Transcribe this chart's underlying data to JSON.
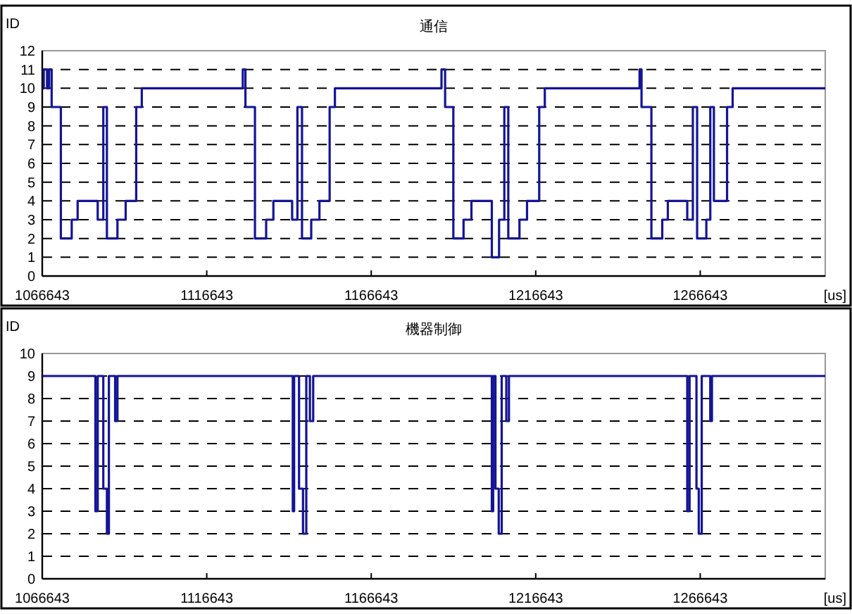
{
  "chart_data": [
    {
      "type": "step",
      "title": "通信",
      "ylabel": "ID",
      "xlabel": "[us]",
      "xlim": [
        1066643,
        1304643
      ],
      "xticks": [
        1066643,
        1116643,
        1166643,
        1216643,
        1266643
      ],
      "ylim": [
        0,
        12
      ],
      "yticks": [
        0,
        1,
        2,
        3,
        4,
        5,
        6,
        7,
        8,
        9,
        10,
        11,
        12
      ],
      "grid": "y",
      "series": [
        {
          "color": "#141496",
          "x": [
            1066643,
            1067100,
            1068100,
            1068700,
            1069500,
            1072300,
            1075600,
            1077400,
            1083500,
            1085200,
            1086300,
            1089500,
            1092000,
            1095200,
            1096900,
            1127600,
            1128400,
            1131300,
            1134700,
            1136900,
            1142600,
            1144200,
            1145600,
            1148400,
            1150900,
            1154000,
            1155600,
            1188000,
            1189100,
            1191600,
            1194700,
            1197100,
            1203300,
            1205500,
            1207100,
            1208300,
            1211700,
            1214000,
            1217700,
            1219400,
            1248200,
            1248800,
            1251800,
            1255100,
            1256800,
            1262700,
            1264400,
            1265700,
            1268500,
            1269700,
            1270800,
            1274800,
            1276500,
            1304643
          ],
          "values": [
            10,
            11,
            10,
            11,
            9,
            2,
            3,
            4,
            3,
            9,
            2,
            3,
            4,
            9,
            10,
            11,
            9,
            2,
            3,
            4,
            3,
            9,
            2,
            3,
            4,
            9,
            10,
            11,
            9,
            2,
            3,
            4,
            1,
            3,
            9,
            2,
            3,
            4,
            9,
            10,
            11,
            9,
            2,
            3,
            4,
            3,
            9,
            2,
            3,
            9,
            4,
            9,
            10,
            10
          ]
        }
      ]
    },
    {
      "type": "step",
      "title": "機器制御",
      "ylabel": "ID",
      "xlabel": "[us]",
      "xlim": [
        1066643,
        1304643
      ],
      "xticks": [
        1066643,
        1116643,
        1166643,
        1216643,
        1266643
      ],
      "ylim": [
        0,
        10
      ],
      "yticks": [
        0,
        1,
        2,
        3,
        4,
        5,
        6,
        7,
        8,
        9,
        10
      ],
      "grid": "y",
      "series": [
        {
          "color": "#141496",
          "x": [
            1066643,
            1082800,
            1083500,
            1085200,
            1086300,
            1086900,
            1088800,
            1089500,
            1142800,
            1143200,
            1144700,
            1145900,
            1146900,
            1148000,
            1149000,
            1203300,
            1203700,
            1204400,
            1205400,
            1206300,
            1207700,
            1208500,
            1262700,
            1263400,
            1265500,
            1266200,
            1267100,
            1269700,
            1270200,
            1304643
          ],
          "values": [
            9,
            3,
            9,
            4,
            2,
            9,
            7,
            9,
            3,
            9,
            4,
            2,
            9,
            7,
            9,
            3,
            9,
            4,
            2,
            9,
            7,
            9,
            3,
            9,
            4,
            2,
            9,
            7,
            9,
            9
          ]
        }
      ]
    }
  ]
}
